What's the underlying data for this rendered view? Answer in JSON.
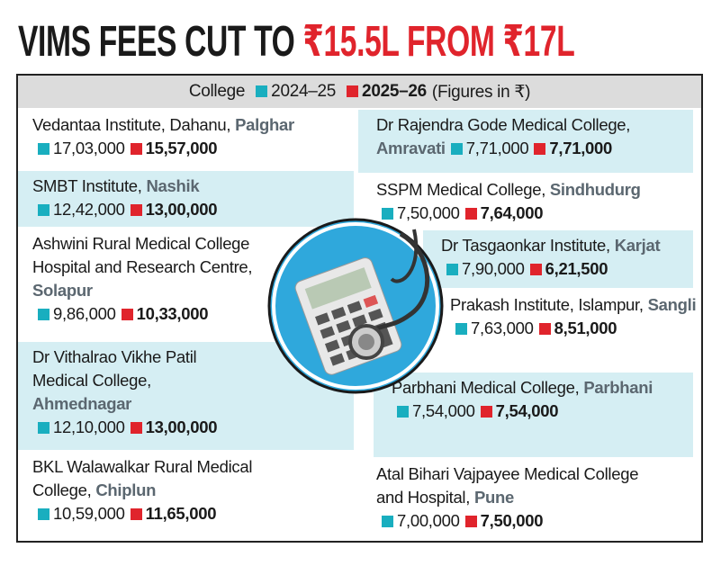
{
  "title": {
    "main": "VIMS FEES CUT TO",
    "highlight": "₹15.5L FROM ₹17L"
  },
  "legend": {
    "college": "College",
    "year1": "2024–25",
    "year2": "2025–26",
    "note": "(Figures in ₹)"
  },
  "left": [
    {
      "name": "Vedantaa Institute, Dahanu,",
      "location": "Palghar",
      "fee_2024_25": "17,03,000",
      "fee_2025_26": "15,57,000"
    },
    {
      "name": "SMBT Institute,",
      "location": "Nashik",
      "fee_2024_25": "12,42,000",
      "fee_2025_26": "13,00,000"
    },
    {
      "name": "Ashwini Rural Medical College Hospital and Research Centre,",
      "location": "Solapur",
      "fee_2024_25": "9,86,000",
      "fee_2025_26": "10,33,000"
    },
    {
      "name": "Dr Vithalrao Vikhe Patil Medical College,",
      "location": "Ahmednagar",
      "fee_2024_25": "12,10,000",
      "fee_2025_26": "13,00,000"
    },
    {
      "name": "BKL Walawalkar Rural Medical College,",
      "location": "Chiplun",
      "fee_2024_25": "10,59,000",
      "fee_2025_26": "11,65,000"
    }
  ],
  "right": [
    {
      "name": "Dr Rajendra Gode Medical College,",
      "location": "Amravati",
      "fee_2024_25": "7,71,000",
      "fee_2025_26": "7,71,000"
    },
    {
      "name": "SSPM Medical College,",
      "location": "Sindhudurg",
      "fee_2024_25": "7,50,000",
      "fee_2025_26": "7,64,000"
    },
    {
      "name": "Dr Tasgaonkar Institute,",
      "location": "Karjat",
      "fee_2024_25": "7,90,000",
      "fee_2025_26": "6,21,500"
    },
    {
      "name": "Prakash Institute, Islampur,",
      "location": "Sangli",
      "fee_2024_25": "7,63,000",
      "fee_2025_26": "8,51,000"
    },
    {
      "name": "Parbhani Medical College,",
      "location": "Parbhani",
      "fee_2024_25": "7,54,000",
      "fee_2025_26": "7,54,000"
    },
    {
      "name": "Atal Bihari Vajpayee Medical College and Hospital,",
      "location": "Pune",
      "fee_2024_25": "7,00,000",
      "fee_2025_26": "7,50,000"
    }
  ]
}
